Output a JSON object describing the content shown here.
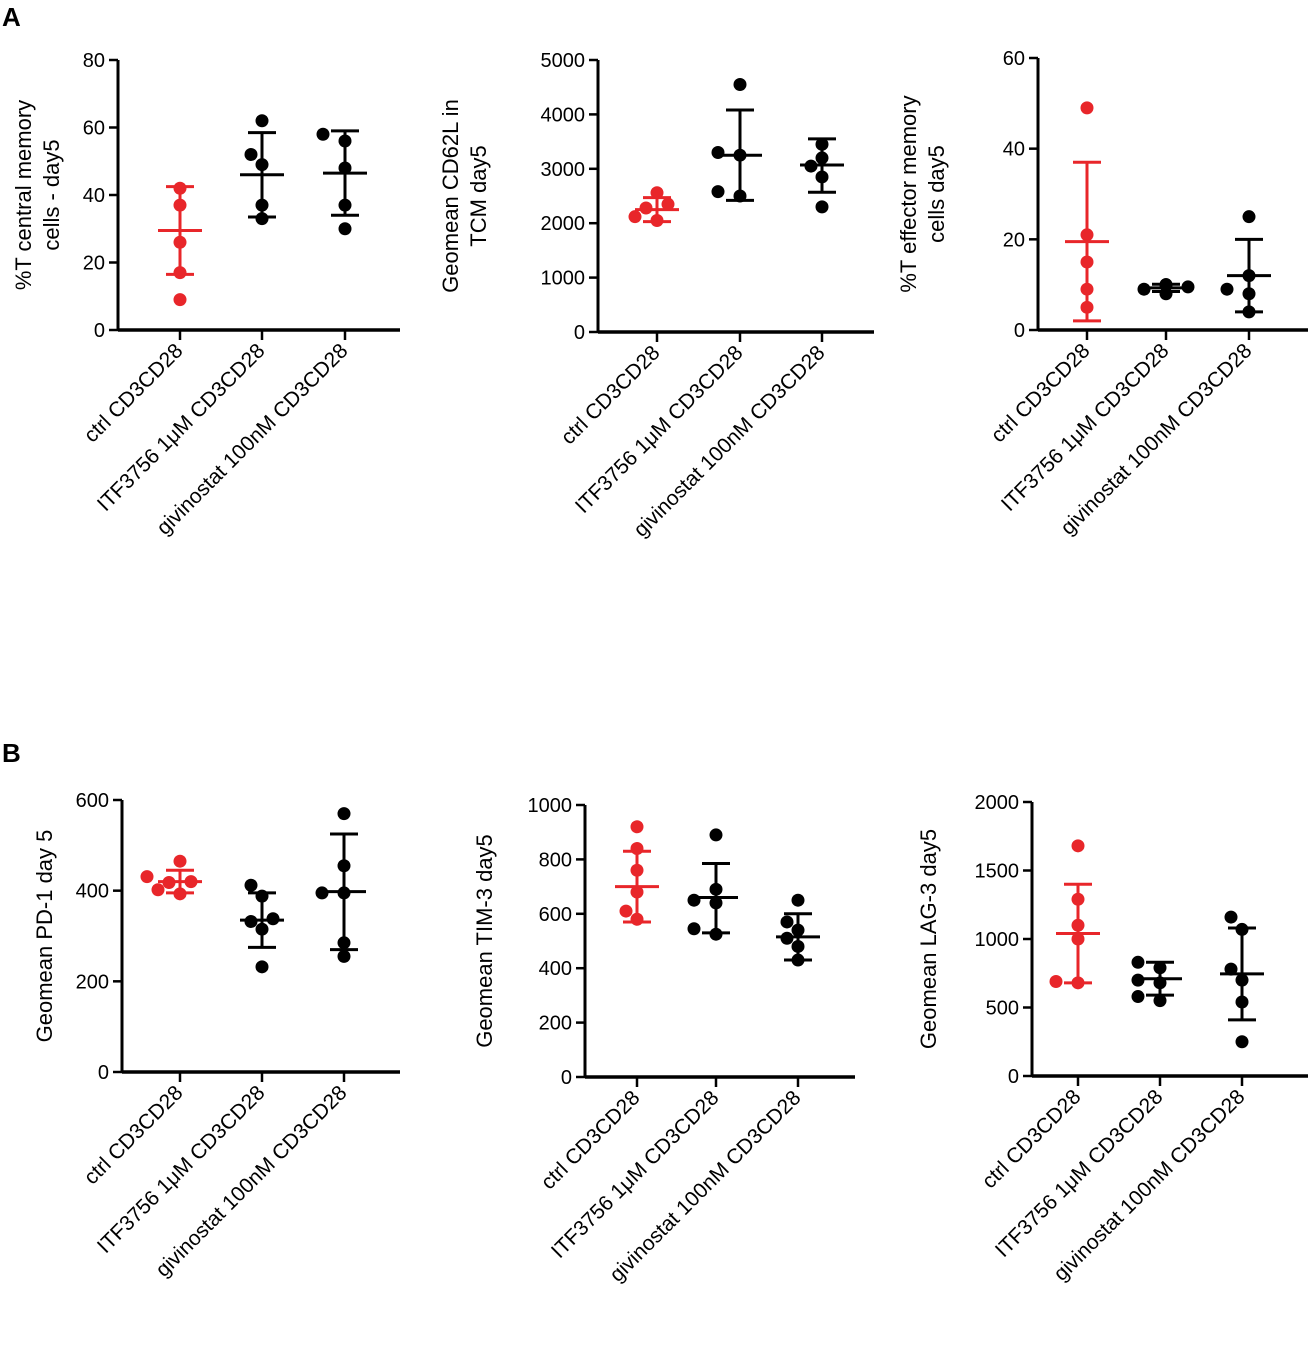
{
  "panels": [
    {
      "label": "A"
    },
    {
      "label": "B"
    }
  ],
  "colors": {
    "ctrl": "#e8262a",
    "treated": "#000000",
    "axis": "#000000"
  },
  "chart_data": [
    {
      "type": "scatter",
      "panel": "A",
      "ylabel": [
        "%T central memory",
        "cells - day5"
      ],
      "ylim": [
        0,
        80
      ],
      "yticks": [
        0,
        20,
        40,
        60,
        80
      ],
      "categories": [
        "ctrl CD3CD28",
        "ITF3756 1μM CD3CD28",
        "givinostat 100nM CD3CD28"
      ],
      "groups": [
        {
          "points": [
            9,
            17,
            26,
            37,
            42
          ],
          "mean": 29.5,
          "sd_low": 16.5,
          "sd_high": 42.5
        },
        {
          "points": [
            33,
            37,
            49,
            52,
            62
          ],
          "mean": 46,
          "sd_low": 33.5,
          "sd_high": 58.5
        },
        {
          "points": [
            30,
            37,
            48,
            56,
            58
          ],
          "mean": 46.5,
          "sd_low": 34,
          "sd_high": 59
        }
      ]
    },
    {
      "type": "scatter",
      "panel": "A",
      "ylabel": [
        "Geomean CD62L in",
        "TCM day5"
      ],
      "ylim": [
        0,
        5000
      ],
      "yticks": [
        0,
        1000,
        2000,
        3000,
        4000,
        5000
      ],
      "categories": [
        "ctrl CD3CD28",
        "ITF3756 1μM CD3CD28",
        "givinostat 100nM CD3CD28"
      ],
      "groups": [
        {
          "points": [
            2050,
            2120,
            2280,
            2350,
            2560
          ],
          "mean": 2250,
          "sd_low": 2030,
          "sd_high": 2470
        },
        {
          "points": [
            2500,
            2580,
            3250,
            3300,
            4550
          ],
          "mean": 3250,
          "sd_low": 2420,
          "sd_high": 4080
        },
        {
          "points": [
            2300,
            2850,
            3050,
            3200,
            3450
          ],
          "mean": 3070,
          "sd_low": 2570,
          "sd_high": 3550
        }
      ]
    },
    {
      "type": "scatter",
      "panel": "A",
      "ylabel": [
        "%T effector memory",
        "cells day5"
      ],
      "ylim": [
        0,
        60
      ],
      "yticks": [
        0,
        20,
        40,
        60
      ],
      "categories": [
        "ctrl CD3CD28",
        "ITF3756 1μM CD3CD28",
        "givinostat 100nM CD3CD28"
      ],
      "groups": [
        {
          "points": [
            5,
            9,
            15,
            21,
            49
          ],
          "mean": 19.5,
          "sd_low": 2,
          "sd_high": 37
        },
        {
          "points": [
            8,
            9,
            9.5,
            10,
            10
          ],
          "mean": 9.3,
          "sd_low": 8.5,
          "sd_high": 10.1
        },
        {
          "points": [
            4,
            8,
            9,
            12,
            25
          ],
          "mean": 12,
          "sd_low": 4,
          "sd_high": 20
        }
      ]
    },
    {
      "type": "scatter",
      "panel": "B",
      "ylabel": [
        "Geomean PD-1 day 5"
      ],
      "ylim": [
        0,
        600
      ],
      "yticks": [
        0,
        200,
        400,
        600
      ],
      "categories": [
        "ctrl CD3CD28",
        "ITF3756 1μM CD3CD28",
        "givinostat 100nM CD3CD28"
      ],
      "groups": [
        {
          "points": [
            393,
            402,
            418,
            420,
            431,
            465
          ],
          "mean": 420,
          "sd_low": 395,
          "sd_high": 445
        },
        {
          "points": [
            232,
            315,
            332,
            338,
            388,
            412
          ],
          "mean": 335,
          "sd_low": 275,
          "sd_high": 395
        },
        {
          "points": [
            255,
            285,
            395,
            395,
            455,
            570
          ],
          "mean": 398,
          "sd_low": 270,
          "sd_high": 525
        }
      ]
    },
    {
      "type": "scatter",
      "panel": "B",
      "ylabel": [
        "Geomean TIM-3 day5"
      ],
      "ylim": [
        0,
        1000
      ],
      "yticks": [
        0,
        200,
        400,
        600,
        800,
        1000
      ],
      "categories": [
        "ctrl CD3CD28",
        "ITF3756 1μM CD3CD28",
        "givinostat 100nM CD3CD28"
      ],
      "groups": [
        {
          "points": [
            580,
            610,
            680,
            760,
            840,
            920
          ],
          "mean": 700,
          "sd_low": 570,
          "sd_high": 830
        },
        {
          "points": [
            525,
            545,
            640,
            650,
            690,
            890
          ],
          "mean": 660,
          "sd_low": 530,
          "sd_high": 785
        },
        {
          "points": [
            430,
            480,
            510,
            540,
            570,
            650
          ],
          "mean": 515,
          "sd_low": 430,
          "sd_high": 600
        }
      ]
    },
    {
      "type": "scatter",
      "panel": "B",
      "ylabel": [
        "Geomean LAG-3 day5"
      ],
      "ylim": [
        0,
        2000
      ],
      "yticks": [
        0,
        500,
        1000,
        1500,
        2000
      ],
      "categories": [
        "ctrl CD3CD28",
        "ITF3756 1μM CD3CD28",
        "givinostat 100nM CD3CD28"
      ],
      "groups": [
        {
          "points": [
            680,
            690,
            1000,
            1100,
            1290,
            1680
          ],
          "mean": 1040,
          "sd_low": 680,
          "sd_high": 1400
        },
        {
          "points": [
            550,
            580,
            680,
            700,
            790,
            830
          ],
          "mean": 710,
          "sd_low": 590,
          "sd_high": 830
        },
        {
          "points": [
            250,
            540,
            700,
            780,
            1070,
            1160
          ],
          "mean": 745,
          "sd_low": 410,
          "sd_high": 1080
        }
      ]
    }
  ]
}
